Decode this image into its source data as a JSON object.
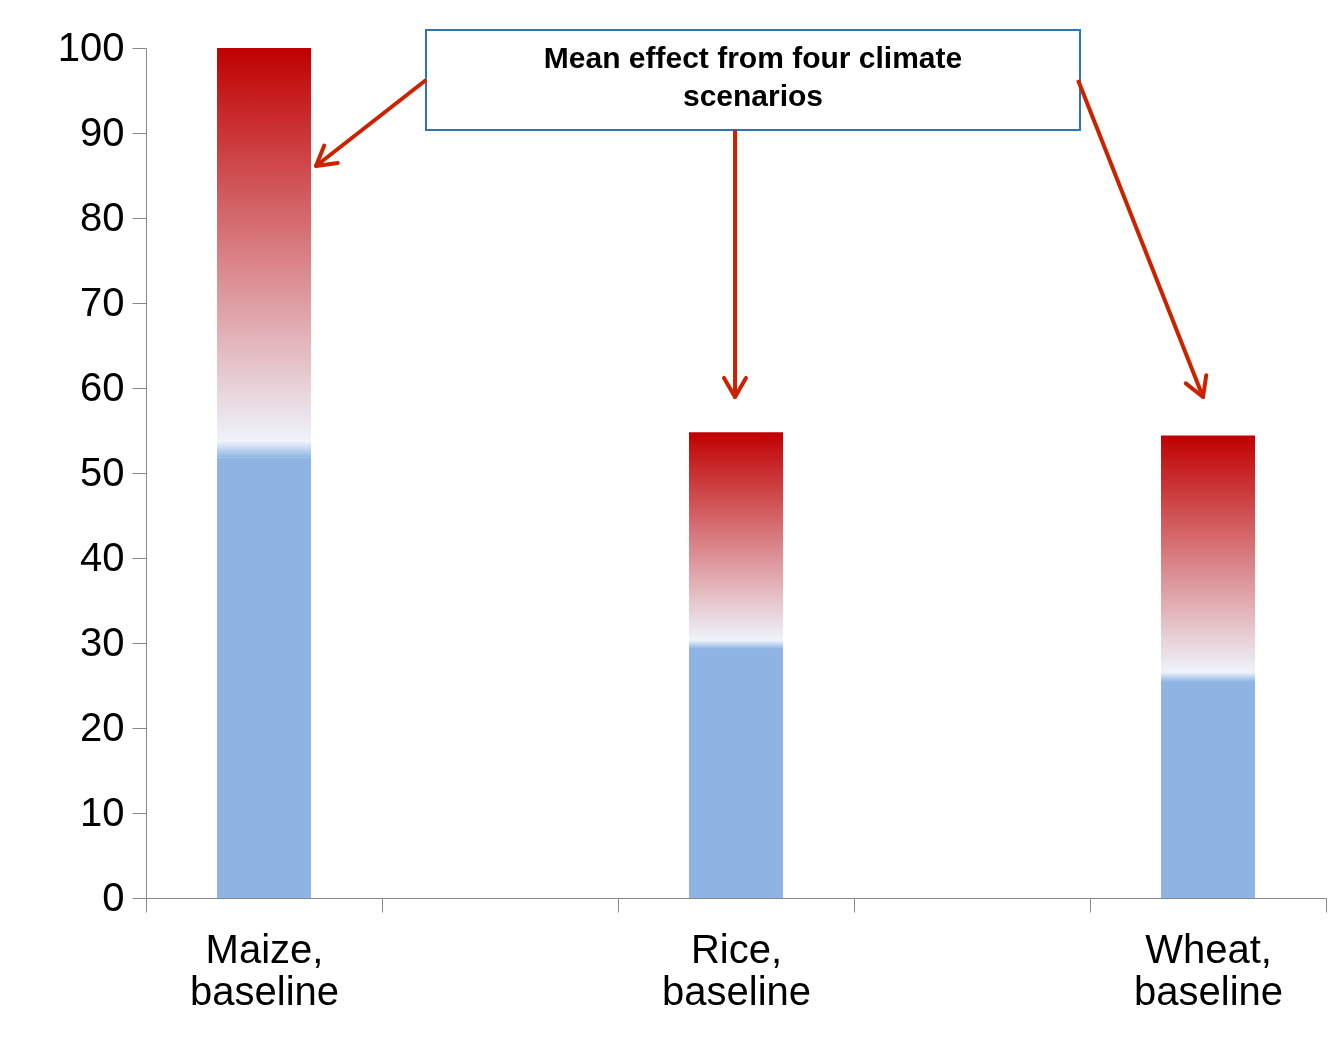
{
  "chart_data": {
    "type": "bar",
    "stacked": true,
    "categories": [
      "Maize,\nbaseline",
      null,
      "Rice,\nbaseline",
      null,
      "Wheat,\nbaseline"
    ],
    "series": [
      {
        "color": "#8eb4e3",
        "values": [
          51.8,
          null,
          29.3,
          null,
          25.4
        ]
      },
      {
        "color": "#c00000",
        "values": [
          48.2,
          null,
          25.5,
          null,
          29.0
        ]
      }
    ],
    "ylim": [
      0,
      100
    ],
    "yticks": [
      0,
      10,
      20,
      30,
      40,
      50,
      60,
      70,
      80,
      90,
      100
    ],
    "grid": false,
    "annotations": [
      "Mean effect from four climate\nscenarios"
    ]
  }
}
